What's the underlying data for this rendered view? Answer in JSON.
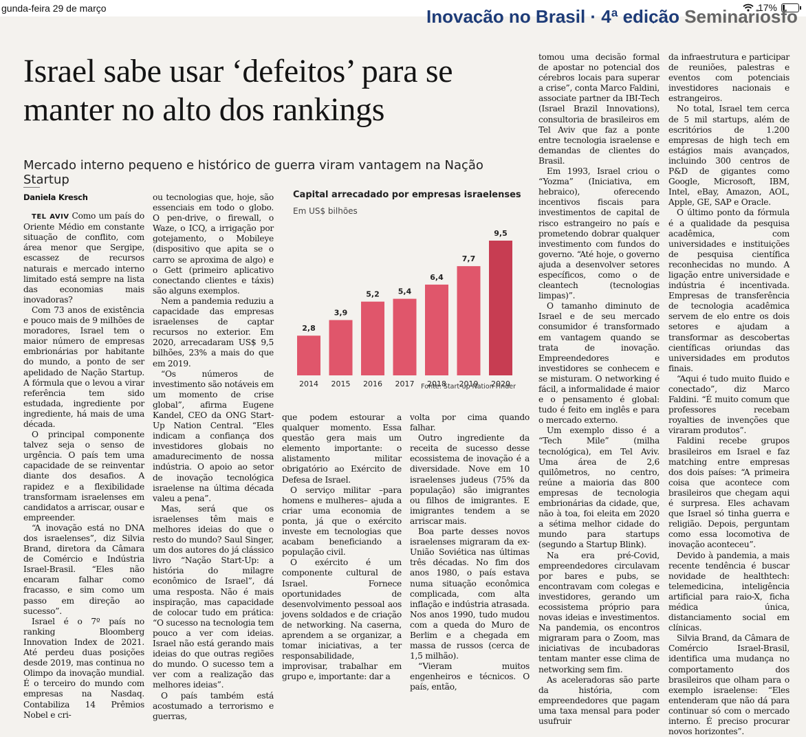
{
  "status_bar": {
    "date": "gunda-feira 29 de março",
    "battery": "17%",
    "icons": [
      "wifi-icon",
      "battery-icon"
    ]
  },
  "header_strip": {
    "part1": "Inovação no Brasil · 4ª edição",
    "part2": " Seminariosfolha"
  },
  "article": {
    "headline": "Israel sabe usar ‘defeitos’ para se manter no alto dos rankings",
    "subtitle": "Mercado interno pequeno e histórico de guerra viram vantagem na Nação Startup",
    "byline": "Daniela Kresch",
    "dateline": "TEL AVIV",
    "col1": {
      "lead": "Como um país do Oriente Médio em constante situação de conflito, com área menor que Sergipe, escassez de recursos naturais e mercado interno limitado está sempre na lista das economias mais inovadoras?",
      "paragraphs": [
        "Com 73 anos de existência e pouco mais de 9 milhões de moradores, Israel tem o maior número de empresas embrionárias por habitante do mundo, a ponto de ser apelidado de Nação Startup. A fórmula que o levou a virar referência tem sido estudada, ingrediente por ingrediente, há mais de uma década.",
        "O principal componente talvez seja o senso de urgência. O país tem uma capacidade de se reinventar diante dos desafios. A rapidez e a flexibilidade transformam israelenses em candidatos a arriscar, ousar e empreender.",
        "“A inovação está no DNA dos israelenses”, diz Silvia Brand, diretora da Câmara de Comércio e Indústria Israel-Brasil. “Eles não encaram falhar como fracasso, e sim como um passo em direção ao sucesso”.",
        "Israel é o 7º país no ranking Bloomberg Innovation Index de 2021. Até perdeu duas posições desde 2019, mas continua no Olimpo da inovação mundial. É o terceiro do mundo com empresas na Nasdaq. Contabiliza 14 Prêmios Nobel e cri-"
      ]
    },
    "col2": [
      "ou tecnologias que, hoje, são essenciais em todo o globo. O pen-drive, o firewall, o Waze, o ICQ, a irrigação por gotejamento, o Mobileye (dispositivo que apita se o carro se aproxima de algo) e o Gett (primeiro aplicativo conectando clientes e táxis) são alguns exemplos.",
      "Nem a pandemia reduziu a capacidade das empresas israelenses de captar recursos no exterior. Em 2020, arrecadaram US$ 9,5 bilhões, 23% a mais do que em 2019.",
      "“Os números de investimento são notáveis em um momento de crise global”, afirma Eugene Kandel, CEO da ONG Start-Up Nation Central. “Eles indicam a confiança dos investidores globais no amadurecimento de nossa indústria. O apoio ao setor de inovação tecnológica israelense na última década valeu a pena”.",
      "Mas, será que os israelenses têm mais e melhores ideias do que o resto do mundo? Saul Singer, um dos autores do já clássico livro “Nação Start-Up: a história do milagre econômico de Israel”, dá uma resposta. Não é mais inspiração, mas capacidade de colocar tudo em prática: “O sucesso na tecnologia tem pouco a ver com ideias. Israel não está gerando mais ideias do que outras regiões do mundo. O sucesso tem a ver com a realização das melhores ideias”.",
      "O país também está acostumado a terrorismo e guerras,"
    ],
    "col3": [
      "que podem estourar a qualquer momento. Essa questão gera mais um elemento importante: o alistamento militar obrigatório ao Exército de Defesa de Israel.",
      "O serviço militar –para homens e mulheres– ajuda a criar uma economia de ponta, já que o exército investe em tecnologias que acabam beneficiando a população civil.",
      "O exército é um componente cultural de Israel. Fornece oportunidades de desenvolvimento pessoal aos jovens soldados e de criação de networking. Na caserna, aprendem a se organizar, a tomar iniciativas, a ter responsabilidade, improvisar, trabalhar em grupo e, importante: dar a"
    ],
    "col4_top": [
      "tomou uma decisão formal de apostar no potencial dos cérebros locais para superar a crise”, conta Marco Faldini, associate partner da IBI-Tech (Israel Brazil Innovations), consultoria de brasileiros em Tel Aviv que faz a ponte entre tecnologia israelense e demandas de clientes do Brasil.",
      "Em 1993, Israel criou o “Yozma” (Iniciativa, em hebraico), oferecendo incentivos fiscais para investimentos de capital de risco estrangeiro no país e prometendo dobrar qualquer investimento com fundos do governo. “Até hoje, o governo ajuda a desenvolver setores específicos, como o de cleantech (tecnologias limpas)”.",
      "O tamanho diminuto de Israel e de seu mercado consumidor é transformado em vantagem quando se trata de inovação. Empreendedores e investidores se conhecem e se misturam. O networking é fácil, a informalidade é maior e o pensamento é global: tudo é feito em inglês e para o mercado externo.",
      "Um exemplo disso é a “Tech Mile” (milha tecnológica), em Tel Aviv. Uma área de 2,6 quilômetros, no centro, reúne a maioria das 800 empresas de tecnologia embrionárias da cidade, que, não à toa, foi eleita em 2020 a sétima melhor cidade do mundo para startups (segundo a Startup Blink).",
      "Na era pré-Covid, empreendedores circulavam por bares e pubs, se encontravam com colegas e investidores, gerando um ecossistema próprio para novas ideias e investimentos. Na pandemia, os encontros migraram para o Zoom, mas iniciativas de incubadoras tentam manter esse clima de networking sem fim.",
      "As aceleradoras são parte da história, com empreendedores que pagam uma taxa mensal para poder usufruir"
    ],
    "col4_bottom": [
      "volta por cima quando falhar.",
      "Outro ingrediente da receita de sucesso desse ecossistema de inovação é a diversidade. Nove em 10 israelenses judeus (75% da população) são imigrantes ou filhos de imigrantes. E imigrantes tendem a se arriscar mais.",
      "Boa parte desses novos israelenses migraram da ex-União Soviética nas últimas três décadas. No fim dos anos 1980, o país estava numa situação econômica complicada, com alta inflação e indústria atrasada. Nos anos 1990, tudo mudou com a queda do Muro de Berlim e a chegada em massa de russos (cerca de 1,5 milhão).",
      "“Vieram muitos engenheiros e técnicos. O país, então,"
    ],
    "col5": [
      "da infraestrutura e participar de reuniões, palestras e eventos com potenciais investidores nacionais e estrangeiros.",
      "No total, Israel tem cerca de 5 mil startups, além de escritórios de 1.200 empresas de high tech em estágios mais avançados, incluindo 300 centros de P&D de gigantes como Google, Microsoft, IBM, Intel, eBay, Amazon, AOL, Apple, GE, SAP e Oracle.",
      "O último ponto da fórmula é a qualidade da pesquisa acadêmica, com universidades e instituições de pesquisa científica reconhecidas no mundo. A ligação entre universidade e indústria é incentivada. Empresas de transferência de tecnologia acadêmica servem de elo entre os dois setores e ajudam a transformar as descobertas científicas oriundas das universidades em produtos finais.",
      "“Aqui é tudo muito fluido e conectado”, diz Marco Faldini. “É muito comum que professores recebam royalties de invenções que viraram produtos”.",
      "Faldini recebe grupos brasileiros em Israel e faz matching entre empresas dos dois países: “A primeira coisa que acontece com brasileiros que chegam aqui é surpresa. Eles achavam que Israel só tinha guerra e religião. Depois, perguntam como essa locomotiva de inovação aconteceu”.",
      "Devido à pandemia, a mais recente tendência é buscar novidade de healthtech: telemedicina, inteligência artificial para raio-X, ficha médica única, distanciamento social em clínicas.",
      "Silvia Brand, da Câmara de Comércio Israel-Brasil, identifica uma mudança no comportamento dos brasileiros que olham para o exemplo israelense: “Eles entenderam que não dá para continuar só com o mercado interno. É preciso procurar novos horizontes”."
    ]
  },
  "chart_data": {
    "type": "bar",
    "title": "Capital arrecadado por empresas israelenses",
    "ylabel": "Em US$ bilhões",
    "xlabel": "",
    "categories": [
      "2014",
      "2015",
      "2016",
      "2017",
      "2018",
      "2019",
      "2020"
    ],
    "values": [
      2.8,
      3.9,
      5.2,
      5.4,
      6.4,
      7.7,
      9.5
    ],
    "value_labels": [
      "2,8",
      "3,9",
      "5,2",
      "5,4",
      "6,4",
      "7,7",
      "9,5"
    ],
    "ylim": [
      0,
      9.5
    ],
    "grid": false,
    "source": "Fonte: Start-up Nation Finder",
    "colors": {
      "bar": "#e0566b",
      "bar_last": "#c73d52"
    }
  }
}
